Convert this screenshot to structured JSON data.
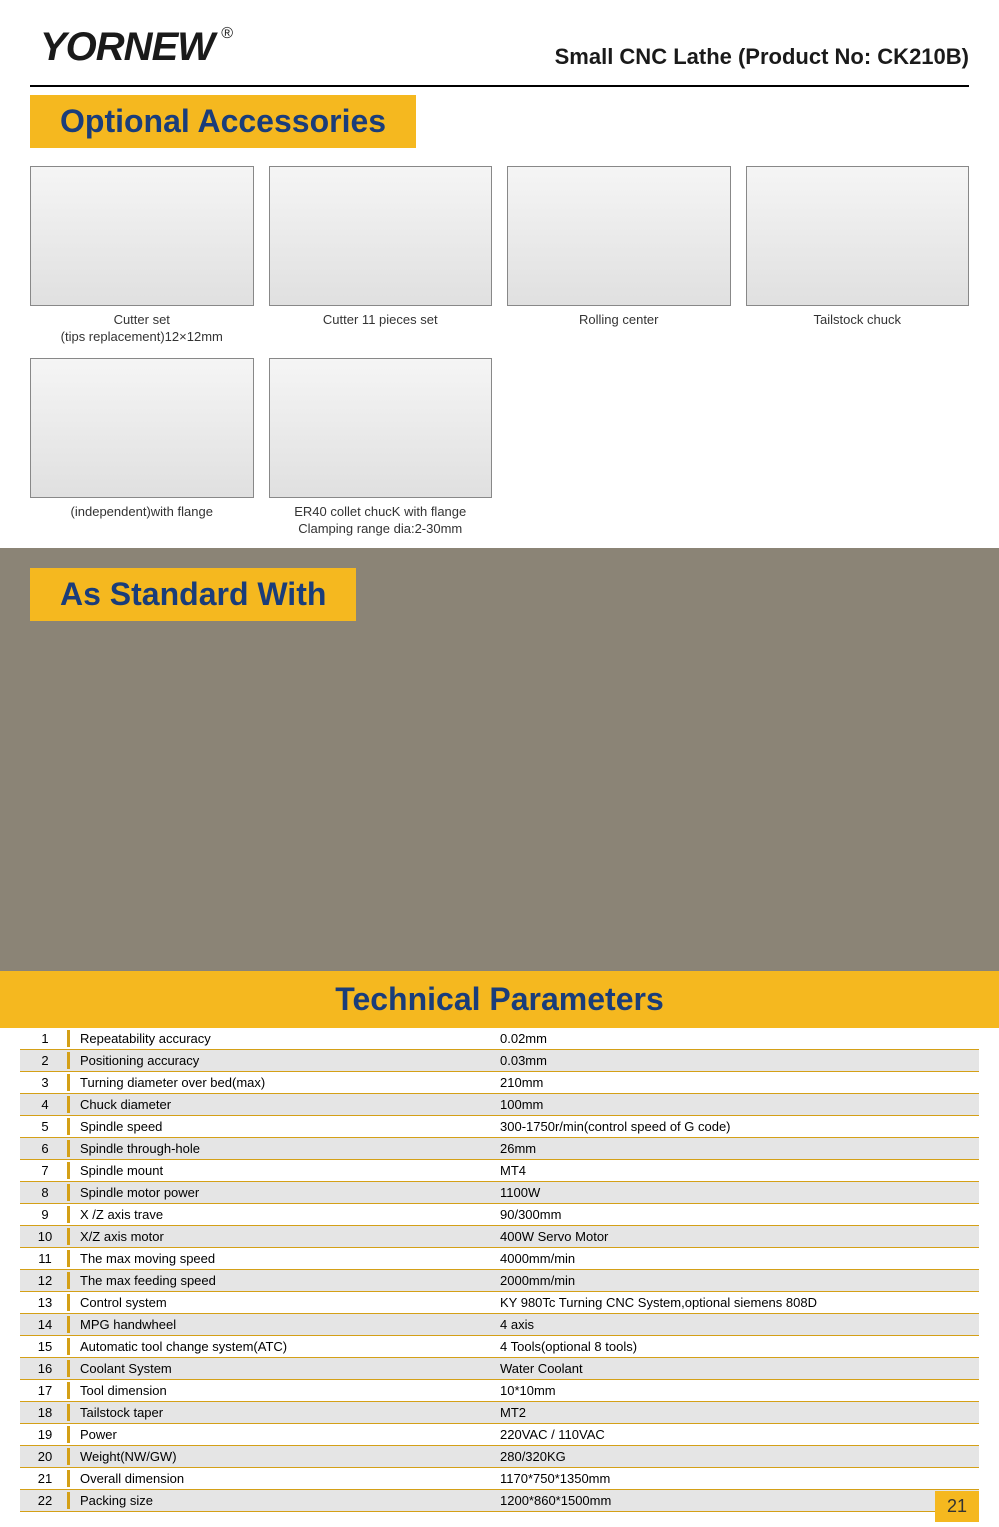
{
  "header": {
    "logo_text": "YORNEW",
    "trademark": "®",
    "product_title": "Small CNC Lathe  (Product No: CK210B)"
  },
  "sections": {
    "optional_accessories_title": "Optional Accessories",
    "standard_with_title": "As Standard With",
    "technical_parameters_title": "Technical Parameters"
  },
  "accessories": [
    {
      "caption": "Cutter set\n(tips replacement)12×12mm"
    },
    {
      "caption": "Cutter 11 pieces set"
    },
    {
      "caption": "Rolling center"
    },
    {
      "caption": "Tailstock chuck"
    },
    {
      "caption": "(independent)with flange"
    },
    {
      "caption": "ER40 collet chucK with flange\nClamping range dia:2-30mm"
    }
  ],
  "technical_params": [
    {
      "num": "1",
      "name": "Repeatability accuracy",
      "value": "0.02mm"
    },
    {
      "num": "2",
      "name": "Positioning accuracy",
      "value": "0.03mm"
    },
    {
      "num": "3",
      "name": "Turning diameter over bed(max)",
      "value": "210mm"
    },
    {
      "num": "4",
      "name": "Chuck diameter",
      "value": "100mm"
    },
    {
      "num": "5",
      "name": "Spindle speed",
      "value": "300-1750r/min(control speed of G code)"
    },
    {
      "num": "6",
      "name": "Spindle through-hole",
      "value": "26mm"
    },
    {
      "num": "7",
      "name": "Spindle mount",
      "value": "MT4"
    },
    {
      "num": "8",
      "name": "Spindle motor power",
      "value": "1100W"
    },
    {
      "num": "9",
      "name": "X /Z axis trave",
      "value": "90/300mm"
    },
    {
      "num": "10",
      "name": "X/Z axis motor",
      "value": "400W Servo Motor"
    },
    {
      "num": "11",
      "name": "The max moving speed",
      "value": "4000mm/min"
    },
    {
      "num": "12",
      "name": "The max feeding speed",
      "value": "2000mm/min"
    },
    {
      "num": "13",
      "name": "Control system",
      "value": "KY 980Tc Turning CNC System,optional siemens 808D"
    },
    {
      "num": "14",
      "name": "MPG handwheel",
      "value": "4 axis"
    },
    {
      "num": "15",
      "name": "Automatic tool change system(ATC)",
      "value": "4 Tools(optional 8 tools)"
    },
    {
      "num": "16",
      "name": "Coolant System",
      "value": "Water Coolant"
    },
    {
      "num": "17",
      "name": "Tool dimension",
      "value": "10*10mm"
    },
    {
      "num": "18",
      "name": "Tailstock taper",
      "value": "MT2"
    },
    {
      "num": "19",
      "name": "Power",
      "value": "220VAC / 110VAC"
    },
    {
      "num": "20",
      "name": "Weight(NW/GW)",
      "value": "280/320KG"
    },
    {
      "num": "21",
      "name": "Overall dimension",
      "value": "1170*750*1350mm"
    },
    {
      "num": "22",
      "name": "Packing size",
      "value": "1200*860*1500mm"
    }
  ],
  "page_number": "21",
  "colors": {
    "accent_yellow": "#f5b81f",
    "title_blue": "#1a3d7a",
    "table_border": "#d4a017",
    "row_even": "#e5e5e5",
    "row_odd": "#ffffff",
    "standard_bg": "#8b8476"
  }
}
